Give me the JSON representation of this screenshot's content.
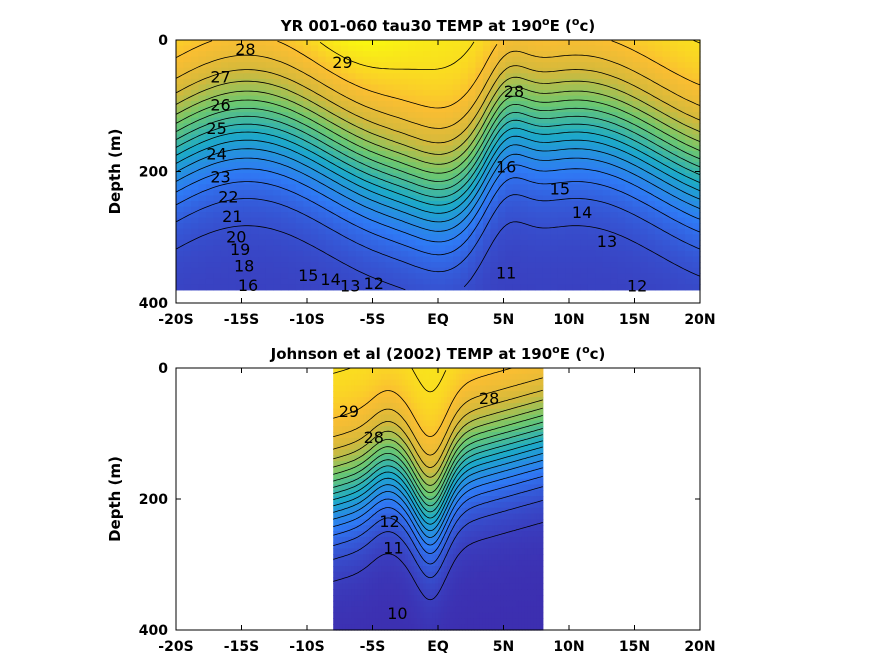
{
  "chart_data": [
    {
      "type": "heatmap",
      "title": "YR 001-060 tau30 TEMP at 190",
      "title_sup": "o",
      "title_tail": "E (",
      "title_unit_sup": "o",
      "title_unit": "c)",
      "ylabel": "Depth (m)",
      "xlim": [
        -20,
        20
      ],
      "ylim": [
        0,
        400
      ],
      "data_xlim": [
        -20,
        20
      ],
      "data_ylim": [
        0,
        380
      ],
      "x_ticks": [
        -20,
        -15,
        -10,
        -5,
        0,
        5,
        10,
        15,
        20
      ],
      "x_tick_labels": [
        "-20S",
        "-15S",
        "-10S",
        "-5S",
        "EQ",
        "5N",
        "10N",
        "15N",
        "20N"
      ],
      "y_ticks": [
        0,
        200,
        400
      ],
      "y_tick_labels": [
        "0",
        "200",
        "400"
      ],
      "colormap": "parula",
      "contour_levels": [
        11,
        12,
        13,
        14,
        15,
        16,
        17,
        18,
        19,
        20,
        21,
        22,
        23,
        24,
        25,
        26,
        27,
        28,
        29
      ],
      "contour_labels": [
        {
          "text": "28",
          "x": -14.7,
          "y": 16
        },
        {
          "text": "29",
          "x": -7.3,
          "y": 36
        },
        {
          "text": "27",
          "x": -16.6,
          "y": 58
        },
        {
          "text": "26",
          "x": -16.6,
          "y": 100
        },
        {
          "text": "25",
          "x": -16.9,
          "y": 136
        },
        {
          "text": "24",
          "x": -16.9,
          "y": 175
        },
        {
          "text": "23",
          "x": -16.6,
          "y": 210
        },
        {
          "text": "22",
          "x": -16.0,
          "y": 240
        },
        {
          "text": "21",
          "x": -15.7,
          "y": 270
        },
        {
          "text": "20",
          "x": -15.4,
          "y": 301
        },
        {
          "text": "19",
          "x": -15.1,
          "y": 320
        },
        {
          "text": "18",
          "x": -14.8,
          "y": 345
        },
        {
          "text": "16",
          "x": -14.5,
          "y": 375
        },
        {
          "text": "15",
          "x": -9.9,
          "y": 360
        },
        {
          "text": "14",
          "x": -8.2,
          "y": 366
        },
        {
          "text": "13",
          "x": -6.7,
          "y": 376
        },
        {
          "text": "12",
          "x": -4.9,
          "y": 372
        },
        {
          "text": "11",
          "x": 5.2,
          "y": 356
        },
        {
          "text": "12",
          "x": 15.2,
          "y": 376
        },
        {
          "text": "13",
          "x": 12.9,
          "y": 308
        },
        {
          "text": "14",
          "x": 11.0,
          "y": 264
        },
        {
          "text": "15",
          "x": 9.3,
          "y": 228
        },
        {
          "text": "28",
          "x": 5.8,
          "y": 80
        },
        {
          "text": "16",
          "x": 5.2,
          "y": 195
        }
      ]
    },
    {
      "type": "heatmap",
      "title": "Johnson et al (2002) TEMP at 190",
      "title_sup": "o",
      "title_tail": "E (",
      "title_unit_sup": "o",
      "title_unit": "c)",
      "ylabel": "Depth (m)",
      "xlim": [
        -20,
        20
      ],
      "ylim": [
        0,
        400
      ],
      "data_xlim": [
        -8,
        8
      ],
      "data_ylim": [
        0,
        400
      ],
      "x_ticks": [
        -20,
        -15,
        -10,
        -5,
        0,
        5,
        10,
        15,
        20
      ],
      "x_tick_labels": [
        "-20S",
        "-15S",
        "-10S",
        "-5S",
        "EQ",
        "5N",
        "10N",
        "15N",
        "20N"
      ],
      "y_ticks": [
        0,
        200,
        400
      ],
      "y_tick_labels": [
        "0",
        "200",
        "400"
      ],
      "colormap": "parula",
      "contour_levels": [
        10,
        11,
        12,
        13,
        14,
        15,
        16,
        17,
        18,
        19,
        20,
        21,
        22,
        23,
        24,
        25,
        26,
        27,
        28,
        29
      ],
      "contour_labels": [
        {
          "text": "29",
          "x": -6.8,
          "y": 68
        },
        {
          "text": "28",
          "x": -4.9,
          "y": 108
        },
        {
          "text": "28",
          "x": 3.9,
          "y": 48
        },
        {
          "text": "12",
          "x": -3.7,
          "y": 236
        },
        {
          "text": "11",
          "x": -3.4,
          "y": 276
        },
        {
          "text": "10",
          "x": -3.1,
          "y": 376
        }
      ]
    }
  ]
}
